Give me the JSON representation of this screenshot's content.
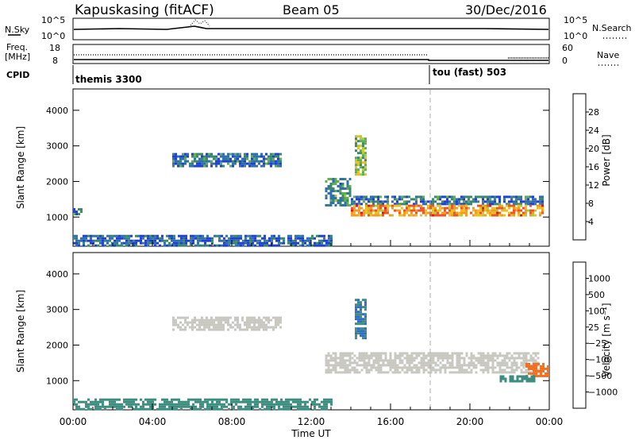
{
  "header": {
    "station": "Kapuskasing (fitACF)",
    "beam": "Beam 05",
    "date": "30/Dec/2016"
  },
  "top_panels": {
    "nsky_label": "N.Sky",
    "nsky_ticks": [
      "10^5",
      "10^0"
    ],
    "nsearch_label": "N.Search",
    "nsearch_ticks": [
      "10^5",
      "10^0"
    ],
    "freq_label_1": "Freq.",
    "freq_label_2": "[MHz]",
    "freq_ticks": [
      "18",
      "8"
    ],
    "nave_label": "Nave",
    "nave_ticks": [
      "60",
      "0"
    ],
    "cpid_label": "CPID",
    "cpid_segments": [
      {
        "label": "themis 3300",
        "start_hour": 0
      },
      {
        "label": "tou (fast) 503",
        "start_hour": 18
      }
    ]
  },
  "colors": {
    "power_scale": [
      "#1f3fd6",
      "#2f6fb0",
      "#3a8a6a",
      "#5fae50",
      "#a8cf3a",
      "#e8c020",
      "#f39a20",
      "#ee5520",
      "#d81c1c"
    ],
    "velocity_scale": [
      "#1a3ad0",
      "#2f6fc0",
      "#3e8e80",
      "#60c050",
      "#c8c8c0",
      "#c0c0b8",
      "#f0b030",
      "#f07020",
      "#e03020",
      "#cc0000"
    ]
  },
  "chart_data": [
    {
      "type": "heatmap",
      "name": "power",
      "ylabel": "Slant Range [km]",
      "xlabel": "Time UT",
      "xlim_hours": [
        0,
        24
      ],
      "ylim": [
        180,
        4600
      ],
      "yticks": [
        "4000",
        "3000",
        "2000",
        "1000"
      ],
      "colorbar_label": "Power [dB]",
      "colorbar_ticks": [
        "28",
        "24",
        "20",
        "16",
        "12",
        "8",
        "4"
      ],
      "dashed_vertical_line_hour": 18,
      "regions": [
        {
          "t0": 5.0,
          "t1": 10.5,
          "r0": 2400,
          "r1": 2800,
          "power_db": 8
        },
        {
          "t0": 12.7,
          "t1": 14.0,
          "r0": 1300,
          "r1": 2100,
          "power_db": 10
        },
        {
          "t0": 14.0,
          "t1": 23.7,
          "r0": 1350,
          "r1": 1600,
          "power_db": 8
        },
        {
          "t0": 14.0,
          "t1": 23.7,
          "r0": 1050,
          "r1": 1350,
          "power_db": 22
        },
        {
          "t0": 14.2,
          "t1": 14.8,
          "r0": 2200,
          "r1": 3300,
          "power_db": 14
        },
        {
          "t0": 0.0,
          "t1": 13.0,
          "r0": 200,
          "r1": 500,
          "power_db": 6
        },
        {
          "t0": 0.0,
          "t1": 0.4,
          "r0": 1100,
          "r1": 1250,
          "power_db": 8
        }
      ]
    },
    {
      "type": "heatmap",
      "name": "velocity",
      "ylabel": "Slant Range [km]",
      "xlabel": "Time UT",
      "xlim_hours": [
        0,
        24
      ],
      "ylim": [
        180,
        4600
      ],
      "yticks": [
        "4000",
        "3000",
        "2000",
        "1000"
      ],
      "xticks": [
        "00:00",
        "04:00",
        "08:00",
        "12:00",
        "16:00",
        "20:00",
        "00:00"
      ],
      "colorbar_label": "Velocity [m s⁻¹]",
      "colorbar_ticks": [
        "1000",
        "500",
        "100",
        "25",
        "−25",
        "−100",
        "−500",
        "−1000"
      ],
      "dashed_vertical_line_hour": 18,
      "regions": [
        {
          "t0": 5.0,
          "t1": 10.5,
          "r0": 2400,
          "r1": 2800,
          "velocity": 0
        },
        {
          "t0": 12.7,
          "t1": 23.5,
          "r0": 1250,
          "r1": 1800,
          "velocity": 0
        },
        {
          "t0": 22.8,
          "t1": 24.0,
          "r0": 1150,
          "r1": 1500,
          "velocity": -400
        },
        {
          "t0": 21.5,
          "t1": 23.2,
          "r0": 1000,
          "r1": 1150,
          "velocity": 150
        },
        {
          "t0": 14.2,
          "t1": 14.8,
          "r0": 2200,
          "r1": 3300,
          "velocity": 300
        },
        {
          "t0": 0.0,
          "t1": 13.0,
          "r0": 200,
          "r1": 500,
          "velocity": 80
        }
      ]
    }
  ]
}
